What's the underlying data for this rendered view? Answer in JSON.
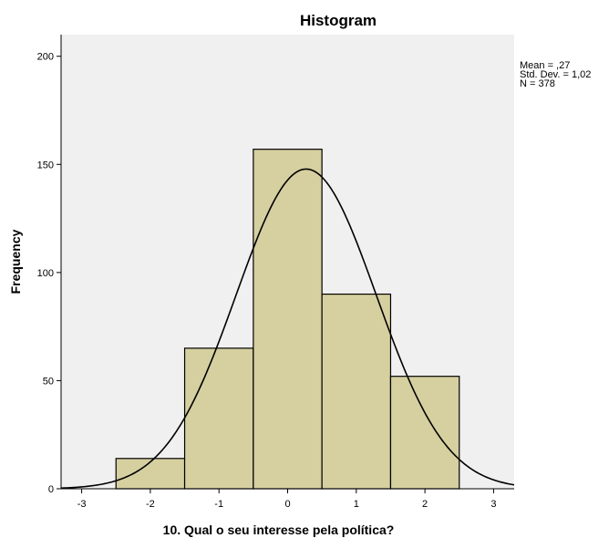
{
  "chart_data": {
    "type": "bar",
    "title": "Histogram",
    "xlabel": "10. Qual o seu interesse pela política?",
    "ylabel": "Frequency",
    "bin_width": 1,
    "bins": [
      {
        "center": -2,
        "count": 14
      },
      {
        "center": -1,
        "count": 65
      },
      {
        "center": 0,
        "count": 157
      },
      {
        "center": 1,
        "count": 90
      },
      {
        "center": 2,
        "count": 52
      }
    ],
    "xlim": [
      -3.3,
      3.3
    ],
    "ylim": [
      0,
      210
    ],
    "x_ticks": [
      "-3",
      "-2",
      "-1",
      "0",
      "1",
      "2",
      "3"
    ],
    "y_ticks": [
      "0",
      "50",
      "100",
      "150",
      "200"
    ],
    "normal_curve": {
      "mean": 0.27,
      "std": 1.02,
      "n": 378
    },
    "stats_text": [
      "Mean = ,27",
      "Std. Dev. = 1,02",
      "N = 378"
    ],
    "colors": {
      "bar_fill": "#d6cfa0",
      "plot_background": "#f0f0f0",
      "bar_stroke": "#000000",
      "curve": "#000000"
    }
  }
}
